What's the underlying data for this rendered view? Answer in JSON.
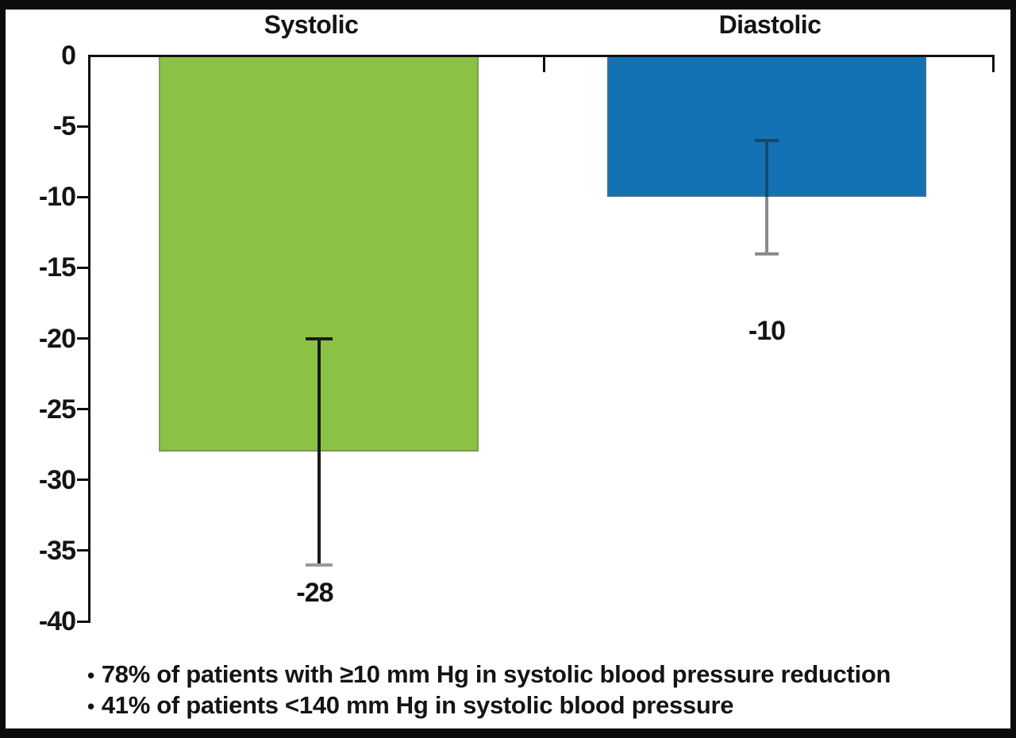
{
  "chart_data": {
    "type": "bar",
    "orientation": "vertical",
    "categories": [
      "Systolic",
      "Diastolic"
    ],
    "values": [
      -28,
      -10
    ],
    "value_labels": [
      "-28",
      "-10"
    ],
    "error_ranges": [
      [
        -20,
        -36
      ],
      [
        -6,
        -14
      ]
    ],
    "bar_colors": [
      "#8BC245",
      "#1272B4"
    ],
    "error_bar_colors": [
      {
        "line_top": "#161616",
        "line_bottom": "#1c1c1c",
        "cap_top": "#1b1b1b",
        "cap_bottom": "#9a9a9a"
      },
      {
        "line_top": "#15486F",
        "line_bottom": "#8c8c8c",
        "cap_top": "#15486F",
        "cap_bottom": "#8c8c8c"
      }
    ],
    "title": "",
    "xlabel": "",
    "ylabel": "",
    "ylim": [
      -40,
      0
    ],
    "yticks": [
      0,
      -5,
      -10,
      -15,
      -20,
      -25,
      -30,
      -35,
      -40
    ],
    "ytick_labels": [
      "0",
      "-5",
      "-10",
      "-15",
      "-20",
      "-25",
      "-30",
      "-35",
      "-40"
    ],
    "grid": false,
    "legend": "none",
    "axis_color": "#0f0f0f"
  },
  "figure": {
    "bullet_glyph": "•",
    "footnotes": [
      "78% of patients with ≥10 mm Hg in systolic blood pressure reduction",
      "41% of patients <140 mm Hg in systolic blood pressure"
    ]
  }
}
